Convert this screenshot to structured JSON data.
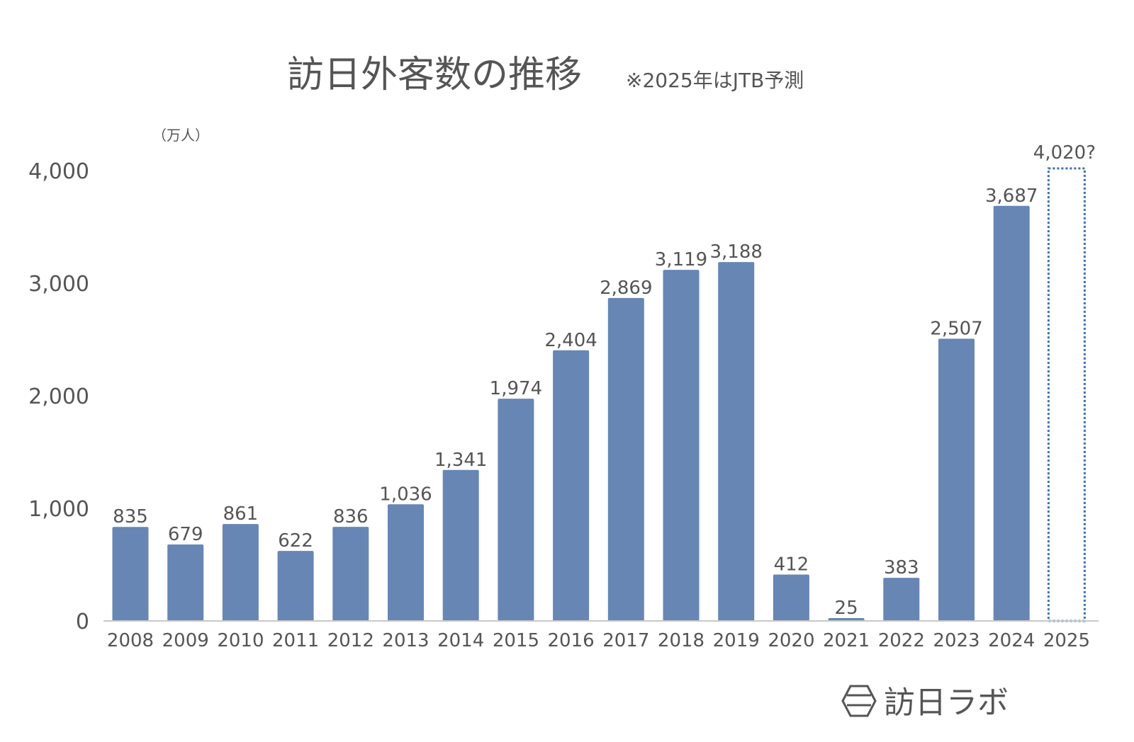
{
  "chart_data": {
    "type": "bar",
    "title": "訪日外客数の推移",
    "subtitle": "※2025年はJTB予測",
    "unit_label": "（万人）",
    "categories": [
      "2008",
      "2009",
      "2010",
      "2011",
      "2012",
      "2013",
      "2014",
      "2015",
      "2016",
      "2017",
      "2018",
      "2019",
      "2020",
      "2021",
      "2022",
      "2023",
      "2024",
      "2025"
    ],
    "values": [
      835,
      679,
      861,
      622,
      836,
      1036,
      1341,
      1974,
      2404,
      2869,
      3119,
      3188,
      412,
      25,
      383,
      2507,
      3687,
      4020
    ],
    "data_labels": [
      "835",
      "679",
      "861",
      "622",
      "836",
      "1,036",
      "1,341",
      "1,974",
      "2,404",
      "2,869",
      "3,119",
      "3,188",
      "412",
      "25",
      "383",
      "2,507",
      "3,687",
      "4,020?"
    ],
    "forecast_index": 17,
    "ylim": [
      0,
      4000
    ],
    "yticks": [
      0,
      1000,
      2000,
      3000,
      4000
    ],
    "ytick_labels": [
      "0",
      "1,000",
      "2,000",
      "3,000",
      "4,000"
    ],
    "grid": false,
    "bar_color": "#6786b4",
    "forecast_outline_color": "#3d6fb4",
    "text_color": "#555555"
  },
  "brand": {
    "name": "訪日ラボ",
    "logo": "hexagon-logo-icon"
  }
}
